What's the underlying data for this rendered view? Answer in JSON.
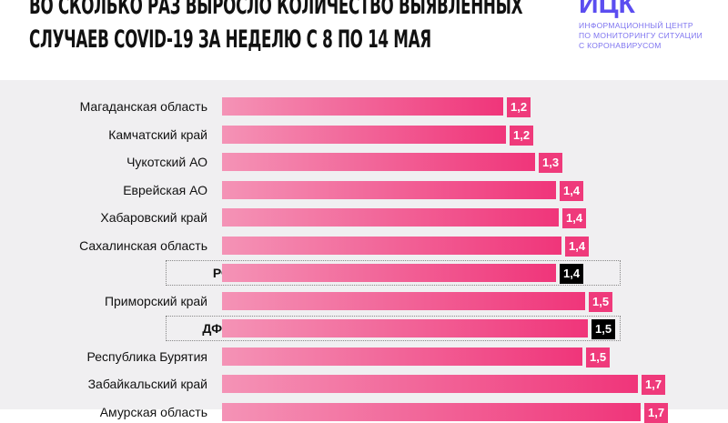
{
  "header": {
    "title_line1": "ВО СКОЛЬКО РАЗ ВЫРОСЛО КОЛИЧЕСТВО ВЫЯВЛЕННЫХ",
    "title_line2": "СЛУЧАЕВ COVID-19 ЗА НЕДЕЛЮ С 8 ПО 14 МАЯ",
    "logo": "ИЦК",
    "org_line1": "ИНФОРМАЦИОННЫЙ ЦЕНТР",
    "org_line2": "ПО МОНИТОРИНГУ СИТУАЦИИ",
    "org_line3": "С КОРОНАВИРУСОМ"
  },
  "colors": {
    "bar": "#f0357a",
    "highlight": "#000000",
    "logo": "#5b4df0"
  },
  "chart_data": {
    "type": "bar",
    "orientation": "horizontal",
    "title": "ВО СКОЛЬКО РАЗ ВЫРОСЛО КОЛИЧЕСТВО ВЫЯВЛЕННЫХ СЛУЧАЕВ COVID-19 ЗА НЕДЕЛЮ С 8 ПО 14 МАЯ",
    "categories": [
      "Магаданская область",
      "Камчатский край",
      "Чукотский АО",
      "Еврейская АО",
      "Хабаровский край",
      "Сахалинская область",
      "РФ",
      "Приморский край",
      "ДФО",
      "Республика Бурятия",
      "Забайкальский край",
      "Амурская область"
    ],
    "values": [
      1.2,
      1.2,
      1.3,
      1.4,
      1.4,
      1.4,
      1.4,
      1.5,
      1.5,
      1.5,
      1.7,
      1.7
    ],
    "labels": [
      "1,2",
      "1,2",
      "1,3",
      "1,4",
      "1,4",
      "1,4",
      "1,4",
      "1,5",
      "1,5",
      "1,5",
      "1,7",
      "1,7"
    ],
    "highlighted": [
      "РФ",
      "ДФО"
    ],
    "grid": false
  }
}
